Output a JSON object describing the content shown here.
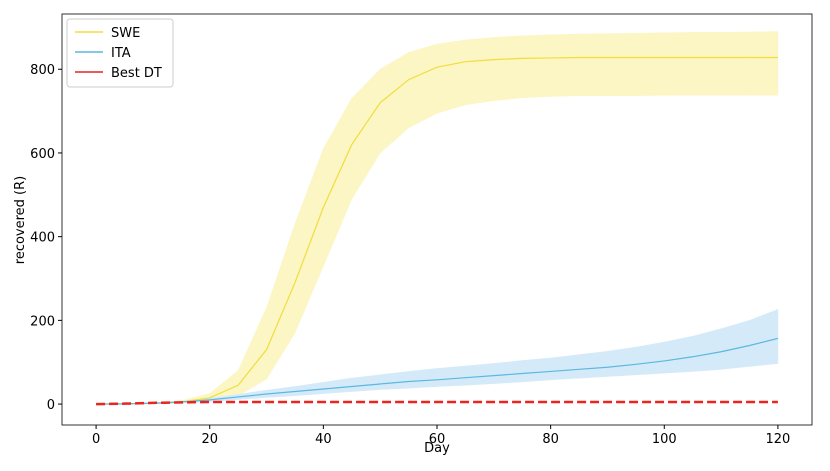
{
  "chart_data": {
    "type": "line",
    "xlabel": "Day",
    "ylabel": "recovered (R)",
    "x": [
      0,
      5,
      10,
      15,
      20,
      25,
      30,
      35,
      40,
      45,
      50,
      55,
      60,
      65,
      70,
      75,
      80,
      85,
      90,
      95,
      100,
      105,
      110,
      115,
      120
    ],
    "series": [
      {
        "name": "SWE",
        "color": "#f2dd3c",
        "band_color": "#fbf6c4",
        "values": [
          0,
          0.5,
          2,
          5,
          15,
          45,
          130,
          290,
          470,
          620,
          720,
          775,
          805,
          818,
          823,
          826,
          827,
          828,
          828,
          828,
          828,
          828,
          828,
          828,
          828
        ],
        "upper": [
          0,
          1,
          3,
          8,
          25,
          80,
          230,
          430,
          610,
          730,
          800,
          840,
          860,
          870,
          876,
          880,
          882,
          884,
          885,
          886,
          887,
          888,
          888,
          889,
          890
        ],
        "lower": [
          0,
          0,
          1,
          3,
          8,
          20,
          60,
          170,
          330,
          490,
          600,
          660,
          695,
          715,
          725,
          732,
          735,
          737,
          737,
          737,
          738,
          738,
          738,
          738,
          738
        ]
      },
      {
        "name": "ITA",
        "color": "#5bb8e0",
        "band_color": "#d5eaf9",
        "values": [
          0,
          0.5,
          2,
          5,
          10,
          17,
          24,
          30,
          36,
          42,
          48,
          54,
          58,
          63,
          68,
          73,
          78,
          83,
          88,
          95,
          103,
          113,
          125,
          140,
          157
        ],
        "upper": [
          0,
          1,
          3,
          7,
          14,
          23,
          33,
          42,
          52,
          62,
          70,
          78,
          85,
          91,
          97,
          104,
          110,
          118,
          126,
          136,
          148,
          162,
          180,
          200,
          226
        ],
        "lower": [
          0,
          0,
          1,
          3,
          6,
          11,
          16,
          20,
          25,
          30,
          35,
          38,
          42,
          45,
          49,
          53,
          58,
          62,
          66,
          70,
          74,
          78,
          83,
          90,
          97
        ]
      },
      {
        "name": "Best DT",
        "color": "#e8251f",
        "dashed": true,
        "values": [
          0,
          1,
          3,
          4,
          5,
          5,
          5,
          5,
          5,
          5,
          5,
          5,
          5,
          5,
          5,
          5,
          5,
          5,
          5,
          5,
          5,
          5,
          5,
          5,
          5
        ]
      }
    ],
    "xlim": [
      -6,
      126
    ],
    "xticks": [
      0,
      20,
      40,
      60,
      80,
      100,
      120
    ],
    "ylim": [
      -50,
      932
    ],
    "yticks": [
      0,
      200,
      400,
      600,
      800
    ],
    "legend": "upper left"
  }
}
